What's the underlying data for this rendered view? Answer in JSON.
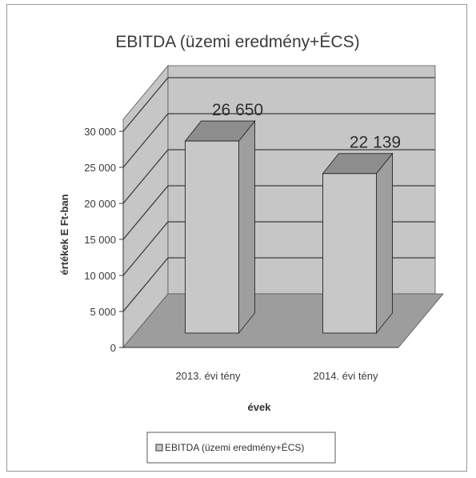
{
  "chart_data": {
    "type": "bar",
    "title": "EBITDA (üzemi eredmény+ÉCS)",
    "xlabel": "évek",
    "ylabel": "értékek E Ft-ban",
    "categories": [
      "2013. évi tény",
      "2014. évi tény"
    ],
    "series": [
      {
        "name": "EBITDA (üzemi eredmény+ÉCS)",
        "values": [
          26650,
          22139
        ]
      }
    ],
    "data_labels": [
      "26 650",
      "22 139"
    ],
    "y_ticks": [
      0,
      5000,
      10000,
      15000,
      20000,
      25000,
      30000
    ],
    "y_tick_labels": [
      "0",
      "5 000",
      "10 000",
      "15 000",
      "20 000",
      "25 000",
      "30 000"
    ],
    "ylim": [
      0,
      30000
    ],
    "grid": true,
    "legend_position": "bottom",
    "style": "3d-column",
    "colors": {
      "bar_front": "#c8c8c8",
      "bar_side": "#9e9e9e",
      "bar_top": "#8e8e8e",
      "wall": "#c6c6c6",
      "floor": "#9d9d9d",
      "gridline": "#3c3c3c"
    }
  }
}
